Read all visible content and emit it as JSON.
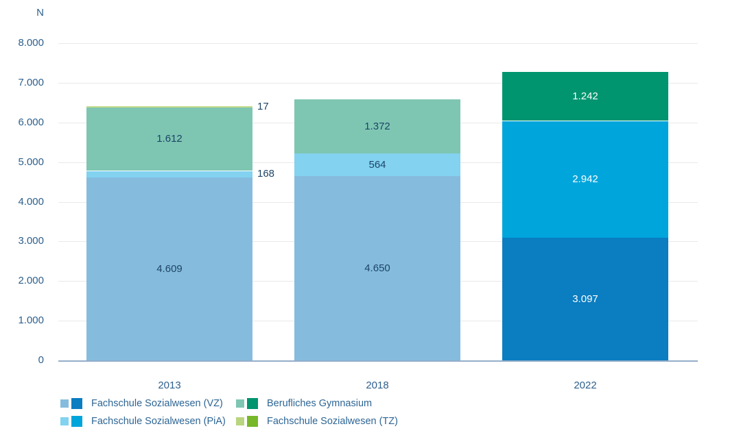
{
  "chart_data": {
    "type": "bar",
    "stacked": true,
    "title": "",
    "ylabel": "N",
    "xlabel": "",
    "ylim": [
      0,
      8000
    ],
    "grid": true,
    "legend_position": "bottom-left",
    "categories": [
      "2013",
      "2018",
      "2022"
    ],
    "yticks": [
      {
        "value": 0,
        "label": "0"
      },
      {
        "value": 1000,
        "label": "1.000"
      },
      {
        "value": 2000,
        "label": "2.000"
      },
      {
        "value": 3000,
        "label": "3.000"
      },
      {
        "value": 4000,
        "label": "4.000"
      },
      {
        "value": 5000,
        "label": "5.000"
      },
      {
        "value": 6000,
        "label": "6.000"
      },
      {
        "value": 7000,
        "label": "7.000"
      },
      {
        "value": 8000,
        "label": "8.000"
      }
    ],
    "series": [
      {
        "key": "fachschule-sozialwesen-vz",
        "name": "Fachschule Sozialwesen (VZ)",
        "values": [
          4609,
          4650,
          3097
        ],
        "labels": [
          "4.609",
          "4.650",
          "3.097"
        ],
        "label_styles": [
          "inside-dark",
          "inside-dark",
          "inside-light"
        ],
        "colors": [
          "#85bcdd",
          "#85bcdd",
          "#0b7dc1"
        ]
      },
      {
        "key": "fachschule-sozialwesen-pia",
        "name": "Fachschule Sozialwesen (PiA)",
        "values": [
          168,
          564,
          2942
        ],
        "labels": [
          "168",
          "564",
          "2.942"
        ],
        "label_styles": [
          "outside-right",
          "inside-dark",
          "inside-light"
        ],
        "colors": [
          "#82d2f0",
          "#82d2f0",
          "#00a5dc"
        ]
      },
      {
        "key": "berufliches-gymnasium",
        "name": "Berufliches Gymnasium",
        "values": [
          1612,
          1372,
          1242
        ],
        "labels": [
          "1.612",
          "1.372",
          "1.242"
        ],
        "label_styles": [
          "inside-dark",
          "inside-dark",
          "inside-light"
        ],
        "colors": [
          "#7ec6b2",
          "#7ec6b2",
          "#00946f"
        ]
      },
      {
        "key": "fachschule-sozialwesen-tz",
        "name": "Fachschule Sozialwesen (TZ)",
        "values": [
          17,
          0,
          0
        ],
        "labels": [
          "17",
          "",
          ""
        ],
        "label_styles": [
          "outside-right",
          "none",
          "none"
        ],
        "colors": [
          "#c3db8a",
          "#c3db8a",
          "#76b82a"
        ]
      }
    ]
  },
  "legend": {
    "columns": [
      [
        {
          "label": "Fachschule Sozialwesen (VZ)",
          "swatch_light": "#85bcdd",
          "swatch_dark": "#0b7dc1"
        },
        {
          "label": "Fachschule Sozialwesen (PiA)",
          "swatch_light": "#82d2f0",
          "swatch_dark": "#00a5dc"
        }
      ],
      [
        {
          "label": "Berufliches Gymnasium",
          "swatch_light": "#7ec6b2",
          "swatch_dark": "#00946f"
        },
        {
          "label": "Fachschule Sozialwesen (TZ)",
          "swatch_light": "#b9d57f",
          "swatch_dark": "#76b82a"
        }
      ]
    ]
  },
  "colors": {
    "axis_text": "#2d5f8c",
    "bar_label_dark": "#1d4467",
    "bar_label_light": "#ffffff",
    "legend_text": "#2d6594",
    "gridline": "#e9e9e9",
    "baseline": "#93adc9",
    "background": "#ffffff"
  }
}
